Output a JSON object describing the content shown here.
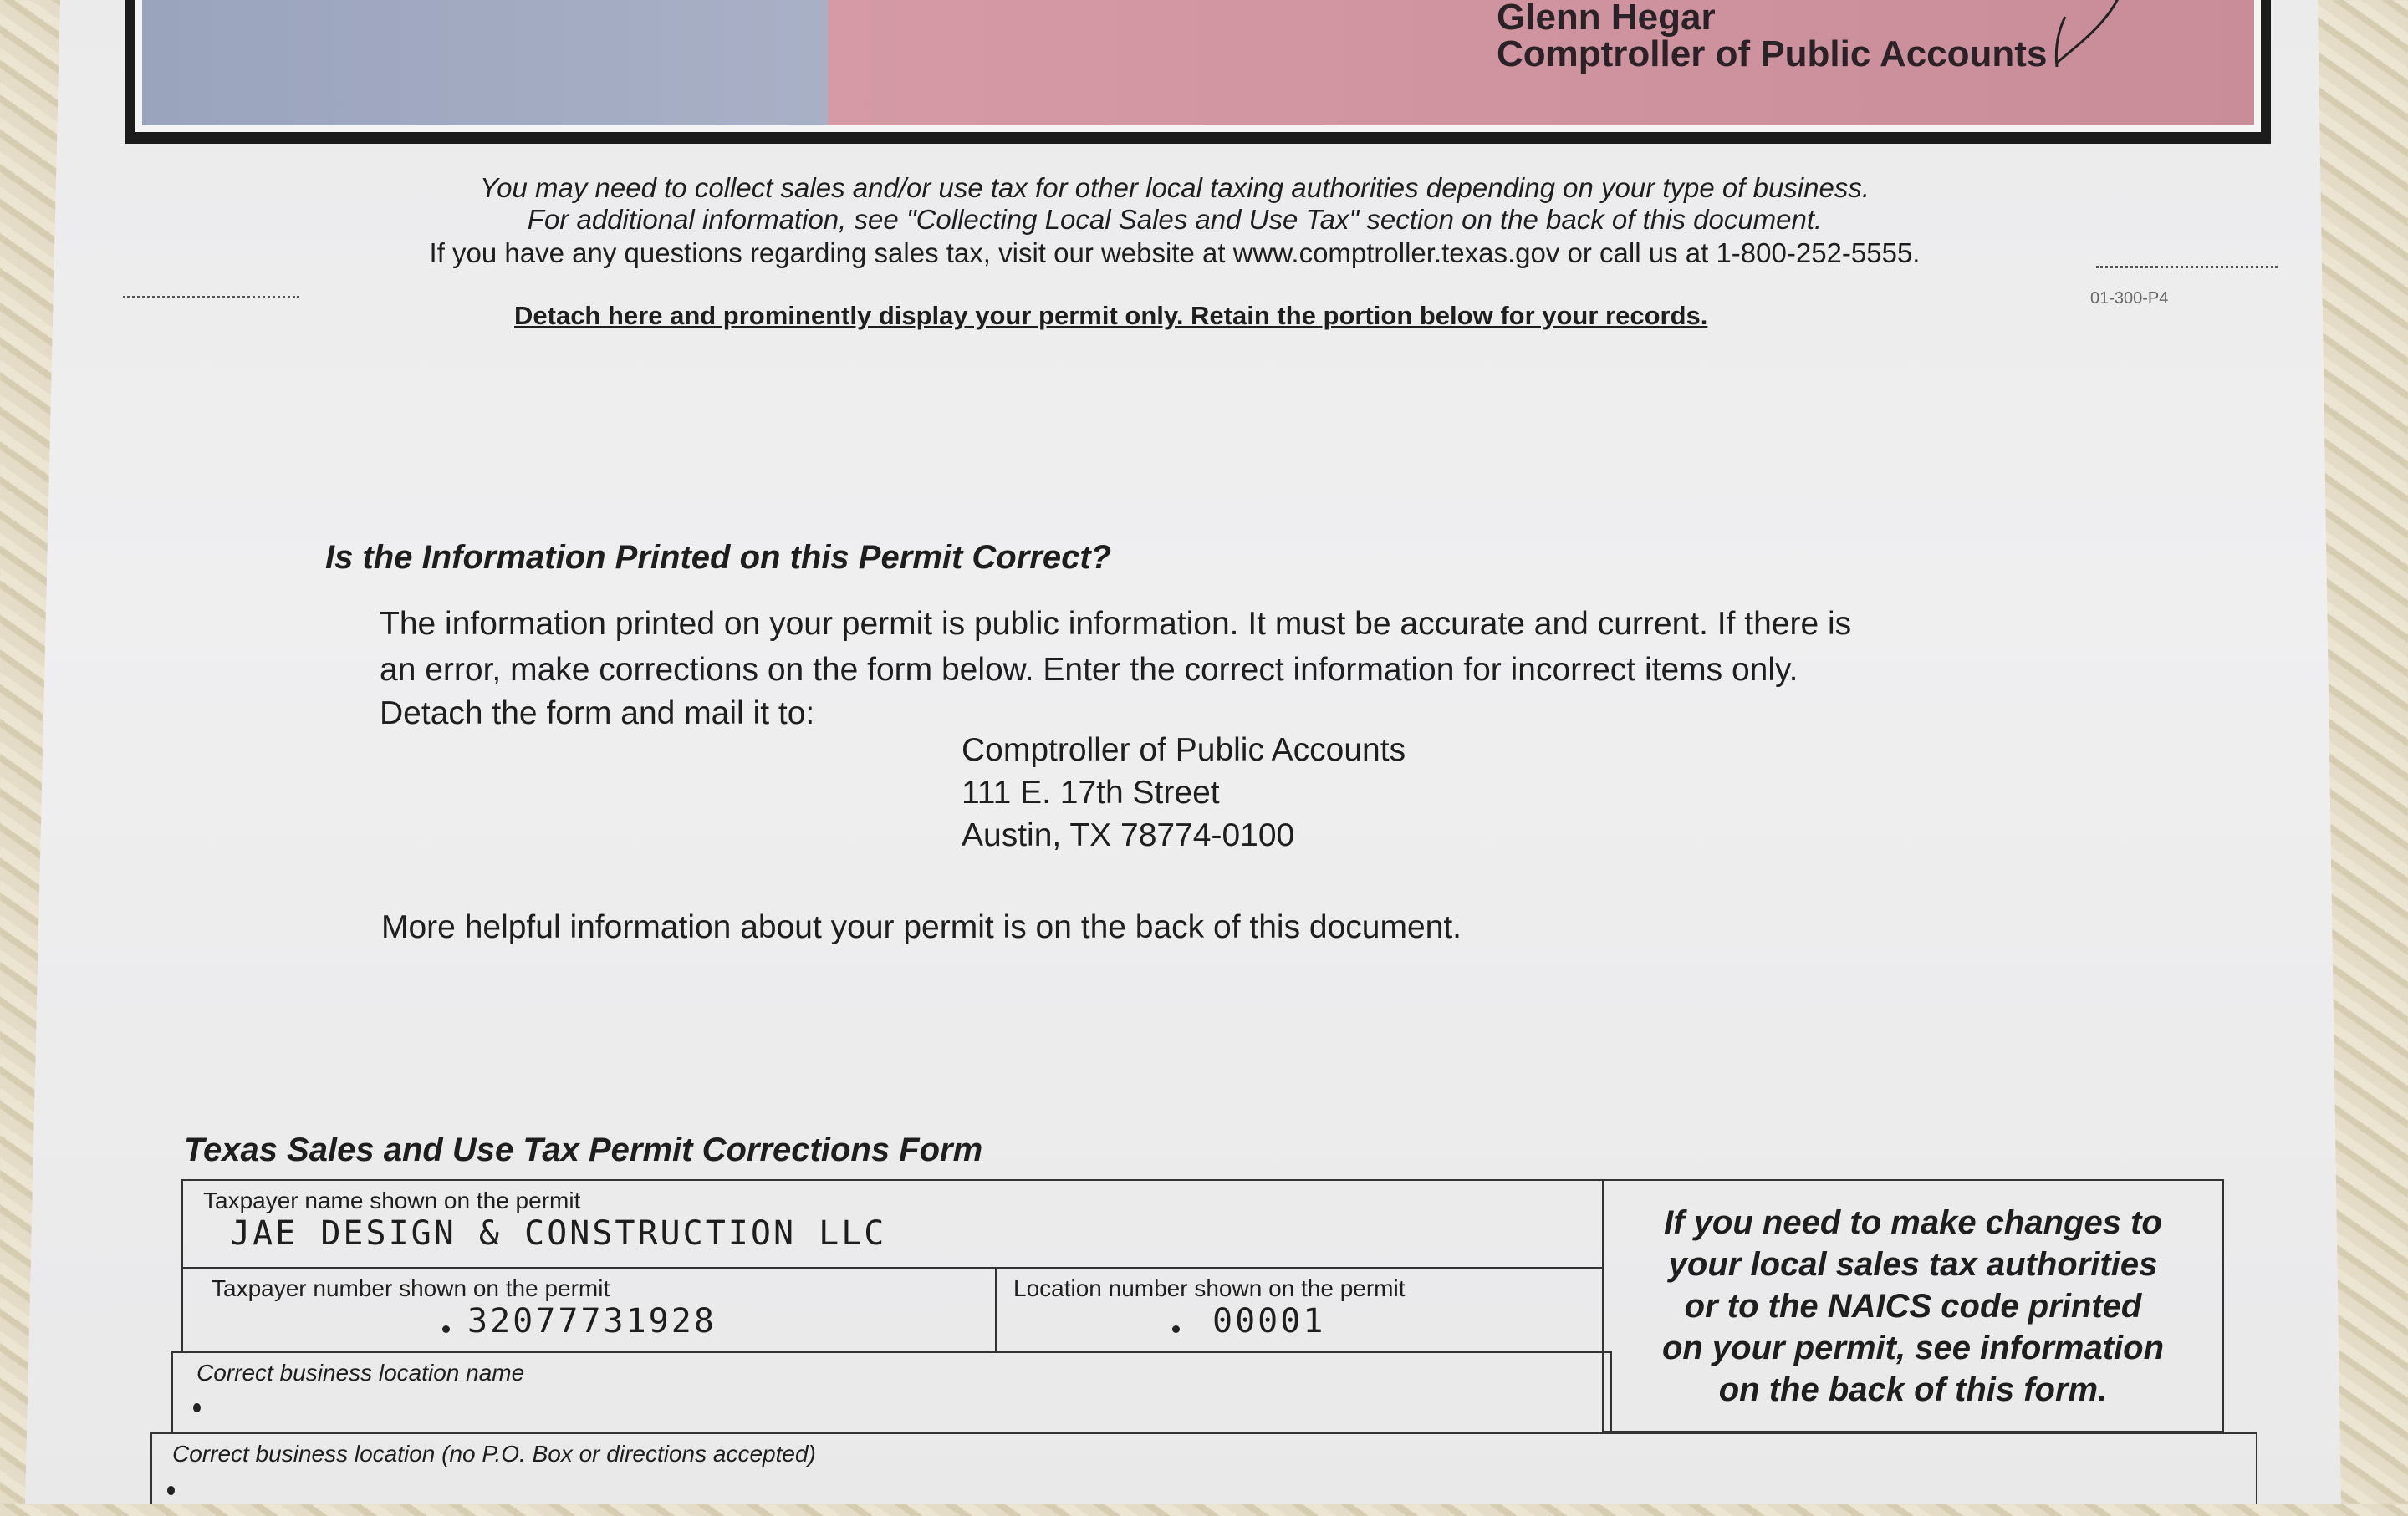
{
  "banner": {
    "name": "Glenn Hegar",
    "title": "Comptroller of Public Accounts"
  },
  "notice": {
    "line1": "You may need to collect sales and/or use tax for other local taxing authorities depending on your type of business.",
    "line2": "For additional information, see \"Collecting Local Sales and Use Tax\" section on the back of this document.",
    "line3": "If you have any questions regarding sales tax, visit our website at www.comptroller.texas.gov or call us at 1-800-252-5555."
  },
  "detach_text": "Detach here and prominently display your permit only. Retain the portion below for your records.",
  "form_code": "01-300-P4",
  "info": {
    "heading": "Is the Information Printed on this Permit Correct?",
    "para_line1": "The information printed on your permit is public information. It must be accurate and current. If there is",
    "para_line2": "an error, make corrections on the form below. Enter the correct information for incorrect items only.",
    "para_line3": "Detach the form and mail it to:",
    "address": [
      "Comptroller of Public Accounts",
      "111 E. 17th Street",
      "Austin, TX  78774-0100"
    ],
    "more": "More helpful information about your permit is on the back of this document."
  },
  "form": {
    "title": "Texas Sales and Use Tax Permit Corrections Form",
    "taxpayer_name_label": "Taxpayer name shown on the permit",
    "taxpayer_name": "JAE DESIGN & CONSTRUCTION LLC",
    "taxpayer_number_label": "Taxpayer number shown on the permit",
    "taxpayer_number": "32077731928",
    "location_number_label": "Location number shown on the permit",
    "location_number": "00001",
    "location_name_label": "Correct business location name",
    "location_label": "Correct business location (no P.O. Box or directions accepted)",
    "side_note": "If you need to make changes to\nyour local sales tax authorities\nor to the NAICS code printed\non your permit, see information\non the back of this form."
  }
}
